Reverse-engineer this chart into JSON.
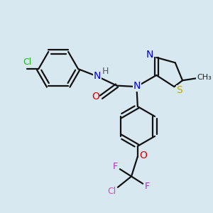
{
  "bg_color": "#d8e8f0",
  "bond_color": "#111111",
  "bond_width": 1.6,
  "atom_colors": {
    "N": "#0000ee",
    "O": "#dd0000",
    "S": "#bbaa00",
    "Cl_green": "#22bb22",
    "Cl_pink": "#dd44bb",
    "F": "#bb22cc",
    "H": "#555555"
  }
}
